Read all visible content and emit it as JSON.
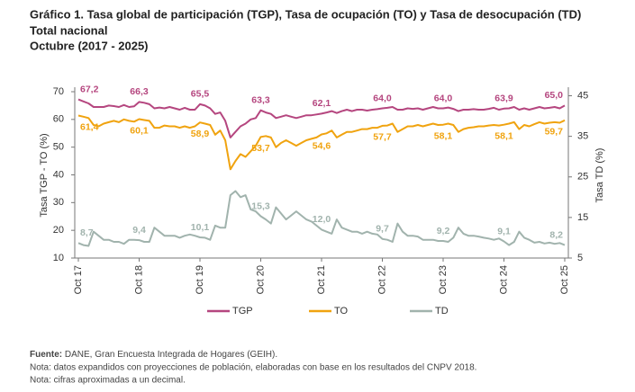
{
  "title_lines": [
    "Gráfico 1. Tasa global de participación (TGP), Tasa de ocupación (TO) y Tasa de desocupación (TD)",
    "Total nacional",
    "Octubre (2017 - 2025)"
  ],
  "chart_data": {
    "type": "line",
    "y_label": "Tasa TGP - TO (%)",
    "y2_label": "Tasa TD (%)",
    "categories": [
      "Oct 17",
      null,
      null,
      null,
      null,
      null,
      null,
      null,
      null,
      null,
      null,
      null,
      "Oct 18",
      null,
      null,
      null,
      null,
      null,
      null,
      null,
      null,
      null,
      null,
      null,
      "Oct 19",
      null,
      null,
      null,
      null,
      null,
      null,
      null,
      null,
      null,
      null,
      null,
      "Oct 20",
      null,
      null,
      null,
      null,
      null,
      null,
      null,
      null,
      null,
      null,
      null,
      "Oct 21",
      null,
      null,
      null,
      null,
      null,
      null,
      null,
      null,
      null,
      null,
      null,
      "Oct 22",
      null,
      null,
      null,
      null,
      null,
      null,
      null,
      null,
      null,
      null,
      null,
      "Oct 23",
      null,
      null,
      null,
      null,
      null,
      null,
      null,
      null,
      null,
      null,
      null,
      "Oct 24",
      null,
      null,
      null,
      null,
      null,
      null,
      null,
      null,
      null,
      null,
      null,
      "Oct 25"
    ],
    "ylim": [
      10,
      70
    ],
    "yticks": [
      10,
      20,
      30,
      40,
      50,
      60,
      70
    ],
    "y2lim": [
      5,
      46
    ],
    "y2ticks": [
      5,
      15,
      25,
      35,
      45
    ],
    "legend": "bottom",
    "series": [
      {
        "name": "TGP",
        "color": "#b5467f",
        "values": [
          67.2,
          66.5,
          65.8,
          64.5,
          64.5,
          64.5,
          65.0,
          64.8,
          64.5,
          65.2,
          64.5,
          64.7,
          66.3,
          66.0,
          65.5,
          64.0,
          64.3,
          64.0,
          64.5,
          64.0,
          63.5,
          64.2,
          63.5,
          63.5,
          65.5,
          65.0,
          64.0,
          62.0,
          62.5,
          59.5,
          53.5,
          55.5,
          57.5,
          58.5,
          60.0,
          60.5,
          63.3,
          62.5,
          62.0,
          60.5,
          61.0,
          61.5,
          61.0,
          60.5,
          61.0,
          61.5,
          61.5,
          61.8,
          62.1,
          62.5,
          63.0,
          62.3,
          63.0,
          63.5,
          63.0,
          63.5,
          63.5,
          63.2,
          63.5,
          63.7,
          64.0,
          64.2,
          64.5,
          63.5,
          63.5,
          64.0,
          63.8,
          64.0,
          63.5,
          64.0,
          64.5,
          64.0,
          64.0,
          64.3,
          63.8,
          63.0,
          63.5,
          63.5,
          63.7,
          63.5,
          63.5,
          63.8,
          64.2,
          63.5,
          63.9,
          64.0,
          64.5,
          63.5,
          64.0,
          63.5,
          64.0,
          64.5,
          64.0,
          64.2,
          64.5,
          64.0,
          65.0
        ],
        "value_labels": [
          "67,2",
          null,
          null,
          null,
          null,
          null,
          null,
          null,
          null,
          null,
          null,
          null,
          "66,3",
          null,
          null,
          null,
          null,
          null,
          null,
          null,
          null,
          null,
          null,
          null,
          "65,5",
          null,
          null,
          null,
          null,
          null,
          null,
          null,
          null,
          null,
          null,
          null,
          "63,3",
          null,
          null,
          null,
          null,
          null,
          null,
          null,
          null,
          null,
          null,
          null,
          "62,1",
          null,
          null,
          null,
          null,
          null,
          null,
          null,
          null,
          null,
          null,
          null,
          "64,0",
          null,
          null,
          null,
          null,
          null,
          null,
          null,
          null,
          null,
          null,
          null,
          "64,0",
          null,
          null,
          null,
          null,
          null,
          null,
          null,
          null,
          null,
          null,
          null,
          "63,9",
          null,
          null,
          null,
          null,
          null,
          null,
          null,
          null,
          null,
          null,
          null,
          "65,0"
        ]
      },
      {
        "name": "TO",
        "color": "#f0a30f",
        "values": [
          61.4,
          61.0,
          60.5,
          58.0,
          57.5,
          58.5,
          59.0,
          59.5,
          59.0,
          60.0,
          59.5,
          59.2,
          60.1,
          59.8,
          59.5,
          57.0,
          57.0,
          57.8,
          57.5,
          57.5,
          57.0,
          57.5,
          57.0,
          57.5,
          58.9,
          58.5,
          58.0,
          54.5,
          56.0,
          52.5,
          42.0,
          45.0,
          47.5,
          46.5,
          48.5,
          50.5,
          53.7,
          54.0,
          53.5,
          50.0,
          51.5,
          52.5,
          51.5,
          50.5,
          51.5,
          52.5,
          53.0,
          53.5,
          54.6,
          55.0,
          56.0,
          53.5,
          54.5,
          55.5,
          55.5,
          56.0,
          56.5,
          56.5,
          57.0,
          57.0,
          57.7,
          57.8,
          58.5,
          55.5,
          56.5,
          57.5,
          57.5,
          58.0,
          57.5,
          58.0,
          58.5,
          58.0,
          58.1,
          58.5,
          58.0,
          55.5,
          56.5,
          57.0,
          57.2,
          57.5,
          57.5,
          57.8,
          58.0,
          57.8,
          58.1,
          58.5,
          59.0,
          56.5,
          58.0,
          57.5,
          58.3,
          59.0,
          58.5,
          58.8,
          59.0,
          58.8,
          59.7
        ],
        "value_labels": [
          "61,4",
          null,
          null,
          null,
          null,
          null,
          null,
          null,
          null,
          null,
          null,
          null,
          "60,1",
          null,
          null,
          null,
          null,
          null,
          null,
          null,
          null,
          null,
          null,
          null,
          "58,9",
          null,
          null,
          null,
          null,
          null,
          null,
          null,
          null,
          null,
          null,
          null,
          "53,7",
          null,
          null,
          null,
          null,
          null,
          null,
          null,
          null,
          null,
          null,
          null,
          "54,6",
          null,
          null,
          null,
          null,
          null,
          null,
          null,
          null,
          null,
          null,
          null,
          "57,7",
          null,
          null,
          null,
          null,
          null,
          null,
          null,
          null,
          null,
          null,
          null,
          "58,1",
          null,
          null,
          null,
          null,
          null,
          null,
          null,
          null,
          null,
          null,
          null,
          "58,1",
          null,
          null,
          null,
          null,
          null,
          null,
          null,
          null,
          null,
          null,
          null,
          "59,7"
        ]
      },
      {
        "name": "TD",
        "color": "#a1b3ad",
        "axis": "y2",
        "values": [
          8.7,
          8.2,
          8.0,
          11.5,
          10.5,
          9.5,
          9.5,
          9.0,
          9.0,
          8.5,
          9.5,
          9.5,
          9.4,
          9.0,
          9.0,
          12.5,
          11.5,
          10.5,
          10.5,
          10.5,
          10.0,
          10.5,
          10.8,
          10.5,
          10.1,
          10.0,
          9.5,
          13.0,
          12.5,
          12.5,
          20.5,
          21.5,
          20.0,
          20.5,
          17.0,
          16.5,
          15.3,
          14.5,
          13.5,
          17.5,
          16.0,
          14.5,
          15.5,
          16.5,
          15.5,
          14.5,
          14.0,
          13.0,
          12.0,
          11.5,
          11.0,
          14.5,
          12.5,
          12.0,
          11.5,
          11.5,
          11.0,
          11.5,
          11.0,
          10.8,
          9.7,
          9.5,
          9.0,
          13.5,
          11.5,
          10.5,
          10.5,
          10.3,
          9.5,
          9.5,
          9.5,
          9.2,
          9.2,
          9.0,
          10.0,
          12.5,
          11.0,
          10.5,
          10.5,
          10.3,
          10.0,
          9.8,
          9.5,
          9.8,
          9.1,
          8.2,
          9.0,
          11.5,
          10.0,
          9.5,
          8.8,
          9.0,
          8.6,
          8.8,
          8.5,
          8.7,
          8.2
        ],
        "value_labels": [
          "8,7",
          null,
          null,
          null,
          null,
          null,
          null,
          null,
          null,
          null,
          null,
          null,
          "9,4",
          null,
          null,
          null,
          null,
          null,
          null,
          null,
          null,
          null,
          null,
          null,
          "10,1",
          null,
          null,
          null,
          null,
          null,
          null,
          null,
          null,
          null,
          null,
          null,
          "15,3",
          null,
          null,
          null,
          null,
          null,
          null,
          null,
          null,
          null,
          null,
          null,
          "12,0",
          null,
          null,
          null,
          null,
          null,
          null,
          null,
          null,
          null,
          null,
          null,
          "9,7",
          null,
          null,
          null,
          null,
          null,
          null,
          null,
          null,
          null,
          null,
          null,
          "9,2",
          null,
          null,
          null,
          null,
          null,
          null,
          null,
          null,
          null,
          null,
          null,
          "9,1",
          null,
          null,
          null,
          null,
          null,
          null,
          null,
          null,
          null,
          null,
          null,
          "8,2"
        ]
      }
    ]
  },
  "footer": {
    "source_label": "Fuente:",
    "source": "DANE, Gran Encuesta Integrada de Hogares (GEIH).",
    "notes": [
      "Nota: datos expandidos con proyecciones de población, elaboradas con base en los resultados del CNPV 2018.",
      "Nota: cifras aproximadas a un decimal."
    ]
  }
}
